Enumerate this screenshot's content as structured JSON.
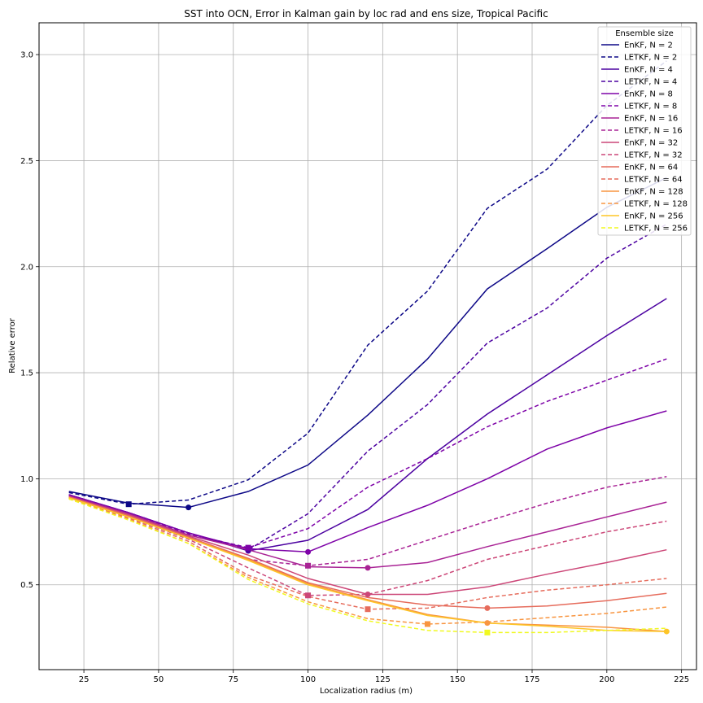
{
  "chart_data": {
    "type": "line",
    "title": "SST into OCN, Error in Kalman gain by loc rad and ens size, Tropical Pacific",
    "xlabel": "Localization radius (m)",
    "ylabel": "Relative error",
    "xlim": [
      10,
      230
    ],
    "ylim": [
      0.1,
      3.15
    ],
    "xticks": [
      "25",
      "50",
      "75",
      "100",
      "125",
      "150",
      "175",
      "200",
      "225"
    ],
    "yticks": [
      "0.5",
      "1.0",
      "1.5",
      "2.0",
      "2.5",
      "3.0"
    ],
    "grid": true,
    "legend_title": "Ensemble size",
    "legend_position": "top-right",
    "x": [
      20,
      40,
      60,
      80,
      100,
      120,
      140,
      160,
      180,
      200,
      220
    ],
    "series": [
      {
        "name": "EnKF, N = 2",
        "color": "#0d0887",
        "dashed": false,
        "values": [
          0.94,
          0.885,
          0.865,
          0.94,
          1.065,
          1.3,
          1.565,
          1.895,
          2.085,
          2.28,
          2.42
        ],
        "marker": {
          "shape": "circle",
          "x": 60,
          "y": 0.865
        }
      },
      {
        "name": "LETKF, N = 2",
        "color": "#0d0887",
        "dashed": true,
        "values": [
          0.935,
          0.88,
          0.9,
          0.995,
          1.215,
          1.63,
          1.885,
          2.275,
          2.46,
          2.76,
          2.97
        ],
        "marker": {
          "shape": "square",
          "x": 40,
          "y": 0.88
        }
      },
      {
        "name": "EnKF, N = 4",
        "color": "#4c02a1",
        "dashed": false,
        "values": [
          0.925,
          0.84,
          0.745,
          0.66,
          0.71,
          0.855,
          1.095,
          1.305,
          1.49,
          1.675,
          1.85
        ],
        "marker": {
          "shape": "circle",
          "x": 80,
          "y": 0.66
        }
      },
      {
        "name": "LETKF, N = 4",
        "color": "#4c02a1",
        "dashed": true,
        "values": [
          0.925,
          0.84,
          0.745,
          0.665,
          0.835,
          1.13,
          1.35,
          1.64,
          1.805,
          2.04,
          2.2
        ],
        "marker": {
          "shape": "square",
          "x": 80,
          "y": 0.67
        }
      },
      {
        "name": "EnKF, N = 8",
        "color": "#7e03a8",
        "dashed": false,
        "values": [
          0.925,
          0.84,
          0.745,
          0.67,
          0.655,
          0.77,
          0.875,
          1.0,
          1.14,
          1.24,
          1.32
        ],
        "marker": {
          "shape": "circle",
          "x": 100,
          "y": 0.655
        }
      },
      {
        "name": "LETKF, N = 8",
        "color": "#7e03a8",
        "dashed": true,
        "values": [
          0.92,
          0.835,
          0.74,
          0.675,
          0.765,
          0.96,
          1.095,
          1.245,
          1.365,
          1.465,
          1.565
        ],
        "marker": {
          "shape": "square",
          "x": 80,
          "y": 0.675
        }
      },
      {
        "name": "EnKF, N = 16",
        "color": "#a92395",
        "dashed": false,
        "values": [
          0.92,
          0.835,
          0.735,
          0.665,
          0.585,
          0.58,
          0.605,
          0.68,
          0.75,
          0.82,
          0.89
        ],
        "marker": {
          "shape": "circle",
          "x": 120,
          "y": 0.58
        }
      },
      {
        "name": "LETKF, N = 16",
        "color": "#a92395",
        "dashed": true,
        "values": [
          0.915,
          0.825,
          0.725,
          0.62,
          0.59,
          0.62,
          0.71,
          0.8,
          0.885,
          0.96,
          1.01
        ],
        "marker": {
          "shape": "square",
          "x": 100,
          "y": 0.59
        }
      },
      {
        "name": "EnKF, N = 32",
        "color": "#cc4778",
        "dashed": false,
        "values": [
          0.915,
          0.83,
          0.73,
          0.64,
          0.53,
          0.455,
          0.455,
          0.49,
          0.55,
          0.605,
          0.665
        ],
        "marker": {
          "shape": "circle",
          "x": 120,
          "y": 0.455
        }
      },
      {
        "name": "LETKF, N = 32",
        "color": "#cc4778",
        "dashed": true,
        "values": [
          0.91,
          0.82,
          0.715,
          0.58,
          0.45,
          0.455,
          0.52,
          0.62,
          0.685,
          0.75,
          0.8
        ],
        "marker": {
          "shape": "square",
          "x": 100,
          "y": 0.45
        }
      },
      {
        "name": "EnKF, N = 64",
        "color": "#e66c5c",
        "dashed": false,
        "values": [
          0.915,
          0.825,
          0.725,
          0.625,
          0.51,
          0.44,
          0.405,
          0.39,
          0.4,
          0.425,
          0.46
        ],
        "marker": {
          "shape": "circle",
          "x": 160,
          "y": 0.39
        }
      },
      {
        "name": "LETKF, N = 64",
        "color": "#e66c5c",
        "dashed": true,
        "values": [
          0.91,
          0.815,
          0.705,
          0.545,
          0.445,
          0.385,
          0.39,
          0.44,
          0.475,
          0.5,
          0.53
        ],
        "marker": {
          "shape": "square",
          "x": 120,
          "y": 0.385
        }
      },
      {
        "name": "EnKF, N = 128",
        "color": "#f89540",
        "dashed": false,
        "values": [
          0.91,
          0.82,
          0.72,
          0.62,
          0.505,
          0.43,
          0.36,
          0.32,
          0.31,
          0.3,
          0.28
        ],
        "marker": {
          "shape": "circle",
          "x": 160,
          "y": 0.32
        }
      },
      {
        "name": "LETKF, N = 128",
        "color": "#f89540",
        "dashed": true,
        "values": [
          0.905,
          0.81,
          0.695,
          0.535,
          0.42,
          0.34,
          0.315,
          0.325,
          0.345,
          0.365,
          0.395
        ],
        "marker": {
          "shape": "square",
          "x": 140,
          "y": 0.315
        }
      },
      {
        "name": "EnKF, N = 256",
        "color": "#fdc527",
        "dashed": false,
        "values": [
          0.91,
          0.82,
          0.72,
          0.615,
          0.5,
          0.425,
          0.355,
          0.32,
          0.305,
          0.285,
          0.28
        ],
        "marker": {
          "shape": "circle",
          "x": 220,
          "y": 0.28
        }
      },
      {
        "name": "LETKF, N = 256",
        "color": "#f0f921",
        "dashed": true,
        "values": [
          0.905,
          0.805,
          0.695,
          0.525,
          0.41,
          0.33,
          0.285,
          0.275,
          0.275,
          0.285,
          0.295
        ],
        "marker": {
          "shape": "square",
          "x": 160,
          "y": 0.275
        }
      }
    ]
  }
}
